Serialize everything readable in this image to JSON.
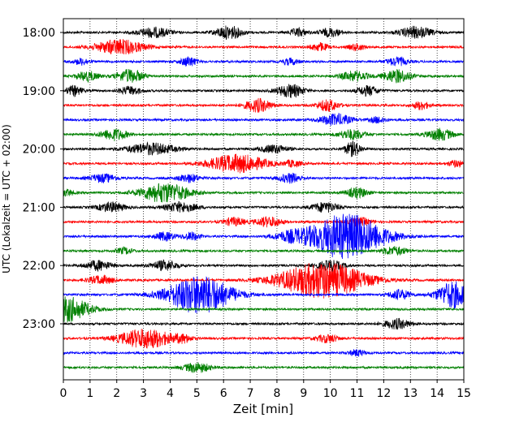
{
  "chart_data": {
    "type": "line",
    "title": "",
    "xlabel": "Zeit  [min]",
    "ylabel": "UTC (Lokalzeit = UTC + 02:00)",
    "xlim": [
      0,
      15
    ],
    "x_ticks": [
      0,
      1,
      2,
      3,
      4,
      5,
      6,
      7,
      8,
      9,
      10,
      11,
      12,
      13,
      14,
      15
    ],
    "y_tick_labels": [
      "18:00",
      "19:00",
      "20:00",
      "21:00",
      "22:00",
      "23:00"
    ],
    "grid": "vertical dotted lines at each minute",
    "row_interval_minutes": 15,
    "line_colors": [
      "#000000",
      "#ff0000",
      "#0000ff",
      "#008000"
    ],
    "series": [
      {
        "start": "18:00",
        "color": "#000000",
        "events": [
          [
            3.4,
            6,
            0.6
          ],
          [
            6.2,
            8,
            0.5
          ],
          [
            8.8,
            5,
            0.3
          ],
          [
            10.0,
            5,
            0.4
          ],
          [
            13.2,
            7,
            0.6
          ]
        ]
      },
      {
        "start": "18:15",
        "color": "#ff0000",
        "events": [
          [
            2.1,
            9,
            0.9
          ],
          [
            9.6,
            5,
            0.3
          ],
          [
            11.0,
            4,
            0.3
          ]
        ]
      },
      {
        "start": "18:30",
        "color": "#0000ff",
        "events": [
          [
            0.7,
            4,
            0.3
          ],
          [
            4.7,
            6,
            0.3
          ],
          [
            8.5,
            4,
            0.3
          ],
          [
            12.5,
            5,
            0.4
          ]
        ]
      },
      {
        "start": "18:45",
        "color": "#008000",
        "events": [
          [
            0.9,
            6,
            0.4
          ],
          [
            2.5,
            8,
            0.5
          ],
          [
            10.9,
            6,
            0.5
          ],
          [
            12.5,
            8,
            0.5
          ]
        ]
      },
      {
        "start": "19:00",
        "color": "#000000",
        "events": [
          [
            0.4,
            6,
            0.3
          ],
          [
            2.5,
            5,
            0.4
          ],
          [
            8.5,
            8,
            0.5
          ],
          [
            11.4,
            6,
            0.4
          ]
        ]
      },
      {
        "start": "19:15",
        "color": "#ff0000",
        "events": [
          [
            7.3,
            8,
            0.5
          ],
          [
            9.9,
            7,
            0.4
          ],
          [
            13.4,
            5,
            0.3
          ]
        ]
      },
      {
        "start": "19:30",
        "color": "#0000ff",
        "events": [
          [
            10.2,
            7,
            0.6
          ],
          [
            11.8,
            4,
            0.3
          ]
        ]
      },
      {
        "start": "19:45",
        "color": "#008000",
        "events": [
          [
            1.9,
            7,
            0.5
          ],
          [
            10.8,
            6,
            0.5
          ],
          [
            14.1,
            7,
            0.5
          ]
        ]
      },
      {
        "start": "20:00",
        "color": "#000000",
        "events": [
          [
            3.3,
            7,
            0.9
          ],
          [
            7.9,
            5,
            0.5
          ],
          [
            10.8,
            5,
            0.3
          ],
          [
            10.9,
            4,
            0.3
          ]
        ]
      },
      {
        "start": "20:15",
        "color": "#ff0000",
        "events": [
          [
            6.5,
            11,
            1.1
          ],
          [
            8.6,
            4,
            0.3
          ],
          [
            14.7,
            4,
            0.3
          ]
        ]
      },
      {
        "start": "20:30",
        "color": "#0000ff",
        "events": [
          [
            1.5,
            5,
            0.5
          ],
          [
            4.7,
            5,
            0.4
          ],
          [
            8.5,
            6,
            0.4
          ]
        ]
      },
      {
        "start": "20:45",
        "color": "#008000",
        "events": [
          [
            0.1,
            4,
            0.3
          ],
          [
            3.8,
            12,
            0.9
          ],
          [
            11.0,
            6,
            0.4
          ]
        ]
      },
      {
        "start": "21:00",
        "color": "#000000",
        "events": [
          [
            1.8,
            6,
            0.5
          ],
          [
            4.4,
            6,
            0.6
          ],
          [
            9.8,
            6,
            0.5
          ]
        ]
      },
      {
        "start": "21:15",
        "color": "#ff0000",
        "events": [
          [
            6.4,
            5,
            0.4
          ],
          [
            7.7,
            6,
            0.5
          ],
          [
            11.1,
            5,
            0.4
          ]
        ]
      },
      {
        "start": "21:30",
        "color": "#0000ff",
        "events": [
          [
            10.6,
            28,
            1.4
          ],
          [
            3.8,
            5,
            0.4
          ],
          [
            4.8,
            5,
            0.3
          ],
          [
            8.5,
            5,
            0.6
          ]
        ]
      },
      {
        "start": "21:45",
        "color": "#008000",
        "events": [
          [
            2.3,
            4,
            0.3
          ],
          [
            12.4,
            5,
            0.5
          ]
        ]
      },
      {
        "start": "22:00",
        "color": "#000000",
        "events": [
          [
            1.3,
            6,
            0.5
          ],
          [
            3.8,
            6,
            0.5
          ],
          [
            10.0,
            6,
            0.5
          ]
        ]
      },
      {
        "start": "22:15",
        "color": "#ff0000",
        "events": [
          [
            9.7,
            22,
            1.6
          ],
          [
            1.4,
            5,
            0.5
          ]
        ]
      },
      {
        "start": "22:30",
        "color": "#0000ff",
        "events": [
          [
            5.1,
            24,
            1.2
          ],
          [
            12.6,
            6,
            0.4
          ],
          [
            14.6,
            16,
            0.6
          ]
        ]
      },
      {
        "start": "22:45",
        "color": "#008000",
        "events": [
          [
            0.05,
            16,
            0.9
          ]
        ]
      },
      {
        "start": "23:00",
        "color": "#000000",
        "events": [
          [
            12.5,
            6,
            0.5
          ]
        ]
      },
      {
        "start": "23:15",
        "color": "#ff0000",
        "events": [
          [
            3.1,
            12,
            1.0
          ],
          [
            9.9,
            5,
            0.4
          ],
          [
            4.5,
            4,
            0.3
          ]
        ]
      },
      {
        "start": "23:30",
        "color": "#0000ff",
        "events": [
          [
            11.0,
            4,
            0.3
          ]
        ]
      },
      {
        "start": "23:45",
        "color": "#008000",
        "events": [
          [
            5.0,
            6,
            0.5
          ]
        ]
      }
    ]
  }
}
